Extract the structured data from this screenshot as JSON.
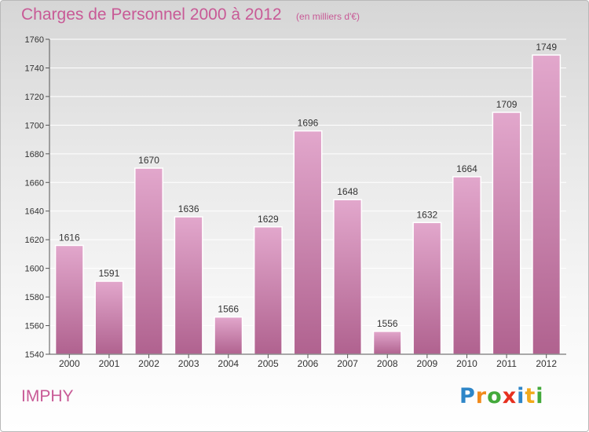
{
  "header": {
    "title": "Charges de Personnel 2000 à 2012",
    "subtitle": "(en milliers d'€)"
  },
  "commune": "IMPHY",
  "logo": {
    "text": "Proxiti",
    "letters": [
      {
        "ch": "P",
        "color": "#2e86c8"
      },
      {
        "ch": "r",
        "color": "#f18a1c"
      },
      {
        "ch": "o",
        "color": "#43a93b"
      },
      {
        "ch": "x",
        "color": "#e6301f"
      },
      {
        "ch": "i",
        "color": "#2e86c8"
      },
      {
        "ch": "t",
        "color": "#f2a91b"
      },
      {
        "ch": "i",
        "color": "#43a93b"
      }
    ]
  },
  "colors": {
    "accent": "#c85a96",
    "bar_top": "#e2a7cc",
    "bar_bottom": "#b0628f"
  },
  "chart_data": {
    "type": "bar",
    "categories": [
      "2000",
      "2001",
      "2002",
      "2003",
      "2004",
      "2005",
      "2006",
      "2007",
      "2008",
      "2009",
      "2010",
      "2011",
      "2012"
    ],
    "values": [
      1616,
      1591,
      1670,
      1636,
      1566,
      1629,
      1696,
      1648,
      1556,
      1632,
      1664,
      1709,
      1749
    ],
    "ylim": [
      1540,
      1760
    ],
    "yticks": [
      1540,
      1560,
      1580,
      1600,
      1620,
      1640,
      1660,
      1680,
      1700,
      1720,
      1740,
      1760
    ],
    "grid": true,
    "data_labels": true
  }
}
